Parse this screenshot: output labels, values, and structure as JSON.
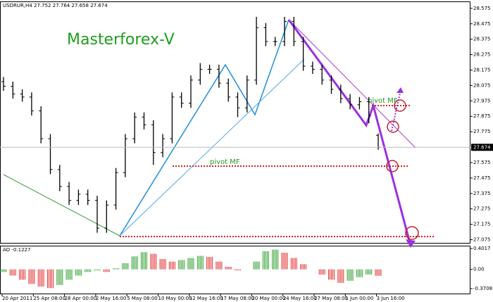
{
  "chart_data": {
    "type": "ohlc",
    "symbol": "USDRUR,H4",
    "annotations": [
      "Masterforex-V",
      "pivot MF",
      "pivot MF"
    ],
    "open": [
      28.1,
      28.07,
      28.02,
      28.0,
      27.91,
      27.73,
      27.53,
      27.42,
      27.33,
      27.37,
      27.33,
      27.15,
      27.3,
      27.51,
      27.73,
      27.87,
      27.82,
      27.64,
      27.73,
      28.0,
      27.96,
      28.11,
      28.18,
      28.18,
      28.09,
      28.0,
      27.93,
      28.11,
      28.45,
      28.36,
      28.36,
      28.49,
      28.36,
      28.2,
      28.18,
      28.11,
      28.05,
      27.99,
      27.95,
      27.97,
      27.752
    ],
    "high": [
      28.13,
      28.1,
      28.05,
      28.03,
      27.94,
      27.76,
      27.56,
      27.45,
      27.4,
      27.4,
      27.36,
      27.33,
      27.54,
      27.76,
      27.9,
      27.9,
      27.85,
      27.76,
      28.03,
      28.03,
      28.14,
      28.22,
      28.21,
      28.21,
      28.12,
      28.03,
      28.14,
      28.52,
      28.48,
      28.39,
      28.52,
      28.52,
      28.39,
      28.23,
      28.21,
      28.14,
      28.08,
      28.02,
      28.0,
      28.0,
      27.764
    ],
    "low": [
      28.04,
      27.99,
      27.97,
      27.88,
      27.7,
      27.5,
      27.39,
      27.3,
      27.3,
      27.3,
      27.12,
      27.12,
      27.27,
      27.48,
      27.7,
      27.79,
      27.56,
      27.61,
      27.7,
      27.93,
      27.93,
      28.08,
      28.15,
      28.06,
      27.97,
      27.87,
      27.9,
      28.08,
      28.33,
      28.33,
      28.33,
      28.33,
      28.17,
      28.15,
      28.08,
      28.02,
      27.96,
      27.92,
      27.92,
      27.83,
      27.658
    ],
    "close": [
      28.07,
      28.02,
      28.0,
      27.91,
      27.73,
      27.53,
      27.42,
      27.33,
      27.37,
      27.33,
      27.15,
      27.3,
      27.51,
      27.73,
      27.87,
      27.82,
      27.64,
      27.73,
      28.0,
      27.96,
      28.11,
      28.18,
      28.18,
      28.09,
      28.0,
      27.93,
      28.11,
      28.45,
      28.36,
      28.36,
      28.49,
      28.36,
      28.2,
      28.18,
      28.11,
      28.05,
      27.99,
      27.95,
      27.97,
      27.88,
      27.674
    ],
    "color": "#000000",
    "ylim": [
      27.05,
      28.62
    ],
    "yticks": [
      28.575,
      28.475,
      28.375,
      28.275,
      28.175,
      28.075,
      27.975,
      27.875,
      27.775,
      27.575,
      27.475,
      27.375,
      27.275,
      27.175,
      27.075
    ],
    "x_labels": [
      "20 Apr 2011",
      "25 Apr 08:00",
      "28 Apr 00:00",
      "2 May 16:00",
      "5 May 08:00",
      "10 May 00:00",
      "12 May 16:00",
      "17 May 08:00",
      "20 May 00:00",
      "24 May 16:00",
      "27 May 08:00",
      "1 Jun 00:00",
      "3 Jun 16:00"
    ],
    "indicator": {
      "type": "histogram",
      "name": "AO",
      "values": [
        -0.05,
        -0.12,
        -0.2,
        -0.28,
        -0.33,
        -0.36,
        -0.3,
        -0.2,
        -0.12,
        -0.05,
        -0.02,
        -0.05,
        0.02,
        0.12,
        0.25,
        0.33,
        0.3,
        0.2,
        0.15,
        0.18,
        0.22,
        0.26,
        0.24,
        0.15,
        0.05,
        -0.02,
        0.0,
        0.15,
        0.35,
        0.38,
        0.32,
        0.22,
        0.1,
        0.0,
        -0.1,
        -0.2,
        -0.26,
        -0.22,
        -0.15,
        -0.1,
        -0.1227
      ],
      "up_color": "#2e9e2e",
      "down_color": "#e03030",
      "ylim": [
        -0.3708,
        0.4017
      ],
      "yticks": [
        0.4017,
        {
          "value": 0,
          "label": "0.00"
        },
        -0.3708
      ]
    }
  }
}
